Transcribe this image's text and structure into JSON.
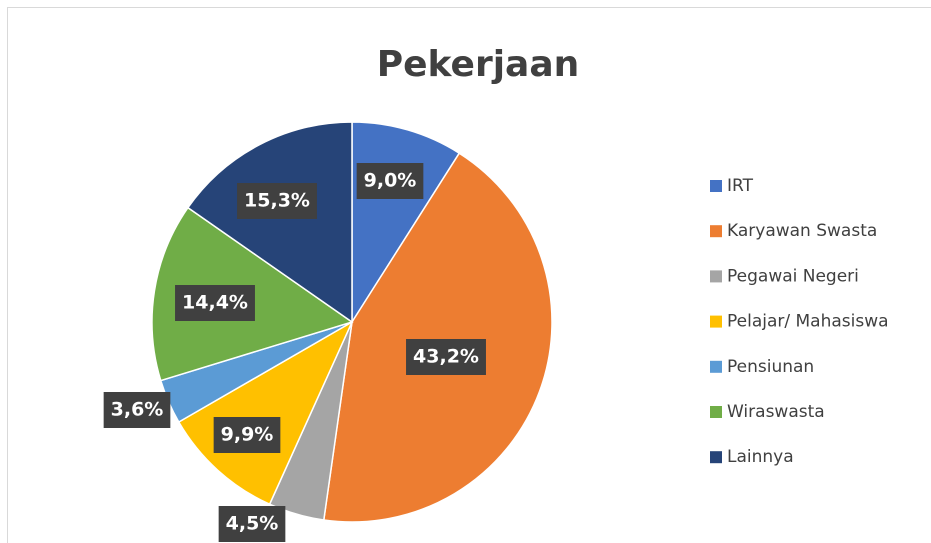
{
  "chart_data": {
    "type": "pie",
    "title": "Pekerjaan",
    "categories": [
      "IRT",
      "Karyawan Swasta",
      "Pegawai Negeri",
      "Pelajar/ Mahasiswa",
      "Pensiunan",
      "Wiraswasta",
      "Lainnya"
    ],
    "values": [
      9.0,
      43.2,
      4.5,
      9.9,
      3.6,
      14.4,
      15.3
    ],
    "value_labels": [
      "9,0%",
      "43,2%",
      "4,5%",
      "9,9%",
      "3,6%",
      "14,4%",
      "15,3%"
    ],
    "colors": [
      "#4472c4",
      "#ed7d31",
      "#a5a5a5",
      "#ffc000",
      "#5b9bd5",
      "#70ad47",
      "#264478"
    ],
    "legend": "right"
  }
}
